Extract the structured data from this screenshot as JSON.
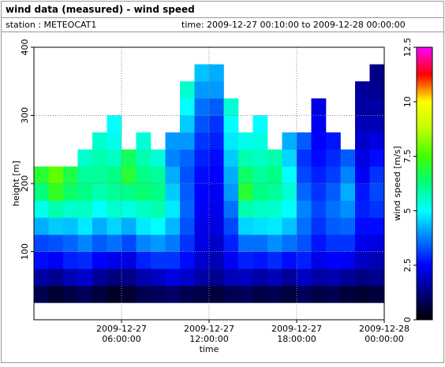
{
  "header": {
    "title": "wind data (measured) - wind speed",
    "station": "station : METEOCAT1",
    "time": "time: 2009-12-27 00:10:00 to 2009-12-28 00:00:00"
  },
  "chart_data": {
    "type": "heatmap",
    "x_label": "time",
    "y_label": "height [m]",
    "xlim": [
      0,
      24
    ],
    "xticks": [
      {
        "value": 6,
        "label": "2009-12-27 06:00:00"
      },
      {
        "value": 12,
        "label": "2009-12-27 12:00:00"
      },
      {
        "value": 18,
        "label": "2009-12-27 18:00:00"
      },
      {
        "value": 24,
        "label": "2009-12-28 00:00:00"
      }
    ],
    "ylim": [
      0,
      400
    ],
    "yticks": [
      100,
      200,
      300,
      400
    ],
    "grid": true,
    "x_edges": [
      0,
      1,
      2,
      3,
      4,
      5,
      6,
      7,
      8,
      9,
      10,
      11,
      12,
      13,
      14,
      15,
      16,
      17,
      18,
      19,
      20,
      21,
      22,
      23,
      24
    ],
    "y_edges": [
      25,
      50,
      75,
      100,
      125,
      150,
      175,
      200,
      225,
      250,
      275,
      300,
      325,
      350,
      375
    ],
    "z": [
      [
        0.8,
        1.6,
        2.6,
        3.2,
        4.2,
        5.2,
        6.3,
        7,
        null,
        null,
        null,
        null,
        null,
        null
      ],
      [
        0.5,
        1.4,
        2.4,
        3.3,
        4.5,
        5.8,
        7.2,
        7.8,
        null,
        null,
        null,
        null,
        null,
        null
      ],
      [
        0.7,
        1.8,
        2.8,
        3.5,
        4.4,
        5.5,
        6.5,
        6.8,
        null,
        null,
        null,
        null,
        null,
        null
      ],
      [
        0.9,
        2,
        2.9,
        3.8,
        4.8,
        5.6,
        6.2,
        6,
        5.5,
        null,
        null,
        null,
        null,
        null
      ],
      [
        0.6,
        1.5,
        2.5,
        3.4,
        4.2,
        5,
        5.8,
        6,
        5.8,
        5.5,
        null,
        null,
        null,
        null
      ],
      [
        0.4,
        1.2,
        2.3,
        3.6,
        4.6,
        5.5,
        6,
        6.2,
        5.6,
        5.2,
        5,
        null,
        null,
        null
      ],
      [
        0.5,
        1.3,
        2.2,
        3.2,
        4.2,
        5.3,
        6.2,
        7,
        6.6,
        null,
        null,
        null,
        null,
        null
      ],
      [
        0.8,
        1.7,
        2.8,
        3.8,
        4.8,
        5.6,
        6.4,
        6.2,
        5.8,
        5.4,
        null,
        null,
        null,
        null
      ],
      [
        0.9,
        1.9,
        3,
        4,
        5,
        5.8,
        6.2,
        6,
        5.4,
        null,
        null,
        null,
        null,
        null
      ],
      [
        1,
        2.2,
        3,
        3.7,
        4.3,
        4.8,
        4.5,
        4.2,
        3.8,
        4,
        null,
        null,
        null,
        null
      ],
      [
        0.8,
        2,
        2.6,
        3,
        3.3,
        3.5,
        3.4,
        3.3,
        3.5,
        4,
        4.5,
        5,
        5.5,
        null
      ],
      [
        0.7,
        1.6,
        2,
        2.2,
        2.3,
        2.4,
        2.5,
        2.6,
        2.8,
        3,
        3.3,
        3.6,
        4,
        4.4
      ],
      [
        0.6,
        1.4,
        1.8,
        2,
        2.2,
        2.3,
        2.4,
        2.5,
        2.6,
        2.8,
        3,
        3.4,
        4,
        4.2
      ],
      [
        0.8,
        1.8,
        2.4,
        2.8,
        3.2,
        3.6,
        4,
        4.2,
        4.5,
        4.8,
        5,
        5.4,
        null,
        null
      ],
      [
        0.9,
        1.9,
        2.8,
        3.6,
        4.6,
        5.8,
        7,
        6.5,
        5.8,
        5.2,
        null,
        null,
        null,
        null
      ],
      [
        0.7,
        1.6,
        2.7,
        3.6,
        4.7,
        5.6,
        6.2,
        6,
        5.6,
        5.3,
        5,
        null,
        null,
        null
      ],
      [
        0.8,
        1.8,
        2.9,
        3.9,
        4.8,
        5.5,
        6,
        6.2,
        5.8,
        null,
        null,
        null,
        null,
        null
      ],
      [
        0.6,
        1.5,
        2.6,
        3.6,
        4.4,
        5,
        5.4,
        5,
        4.6,
        4.2,
        null,
        null,
        null,
        null
      ],
      [
        0.9,
        1.9,
        2.8,
        3.3,
        3.6,
        3.8,
        3.5,
        3.2,
        3,
        3.4,
        null,
        null,
        null,
        null
      ],
      [
        0.7,
        1.6,
        2.3,
        2.7,
        3,
        3.2,
        3,
        2.8,
        2.6,
        2.5,
        2.4,
        2.2,
        null,
        null
      ],
      [
        0.8,
        1.7,
        2.5,
        3,
        3.4,
        3.6,
        3.4,
        3.1,
        2.9,
        2.7,
        null,
        null,
        null,
        null
      ],
      [
        0.6,
        1.5,
        2.4,
        3,
        3.5,
        3.9,
        4.2,
        3.8,
        3.4,
        null,
        null,
        null,
        null,
        null
      ],
      [
        0.5,
        1.3,
        1.9,
        2.3,
        2.6,
        2.8,
        2.7,
        2.4,
        2.2,
        2,
        1.8,
        1.6,
        1.5,
        null
      ],
      [
        0.6,
        1.4,
        1.8,
        2.2,
        2.6,
        3,
        3.2,
        3,
        2.6,
        2.2,
        1.8,
        1.6,
        1.4,
        1.3
      ]
    ],
    "colormap": [
      "#000000",
      "#00007f",
      "#0000ff",
      "#0080ff",
      "#00ffff",
      "#00ff80",
      "#40ff00",
      "#c0ff00",
      "#ffff00",
      "#ff0000",
      "#ff00ff"
    ],
    "clim": [
      0,
      12.5
    ],
    "cticks": [
      0,
      2.5,
      5,
      7.5,
      10,
      12.5
    ],
    "colorbar_label": "wind speed [m/s]"
  }
}
